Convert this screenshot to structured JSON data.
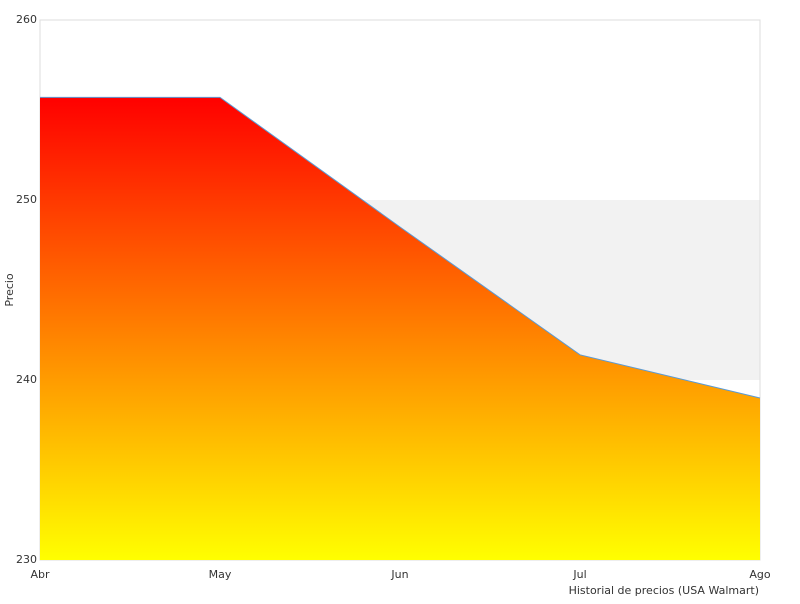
{
  "chart_data": {
    "type": "area",
    "categories": [
      "Abr",
      "May",
      "Jun",
      "Jul",
      "Ago"
    ],
    "series": [
      {
        "name": "Precio",
        "color": "#5b9bd5",
        "values": [
          255.7,
          255.7,
          248.5,
          241.4,
          239.0
        ]
      }
    ],
    "fill_gradient": [
      "#ff0000",
      "#ffff00"
    ],
    "ylim": [
      230,
      260
    ],
    "yticks": [
      230,
      240,
      250,
      260
    ],
    "alternate_bands": true,
    "band_color": "#f2f2f2",
    "y_label": "Precio",
    "x_label": "Historial de precios (USA Walmart)"
  }
}
